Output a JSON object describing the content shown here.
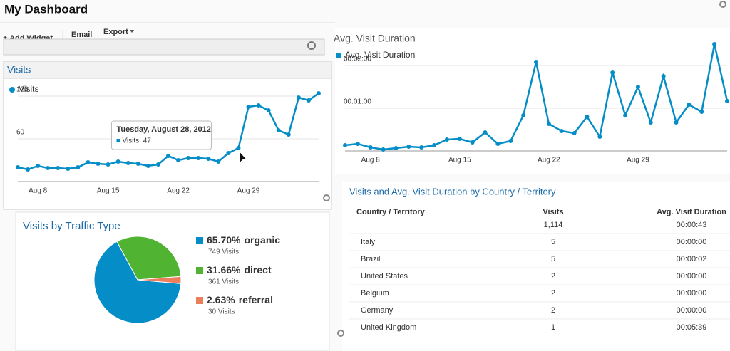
{
  "header": {
    "title": "My Dashboard"
  },
  "toolbar": {
    "add_widget": "+ Add Widget",
    "email": "Email",
    "export": "Export"
  },
  "chart_data": [
    {
      "type": "line",
      "title": "Visits",
      "categories": [
        null,
        null,
        "Aug 8",
        null,
        null,
        null,
        null,
        null,
        null,
        "Aug 15",
        null,
        null,
        null,
        null,
        null,
        null,
        "Aug 22",
        null,
        null,
        null,
        null,
        null,
        null,
        "Aug 29",
        null,
        null,
        null,
        null,
        null,
        null,
        null
      ],
      "series": [
        {
          "name": "Visits",
          "color": "#058dc7",
          "values": [
            20,
            17,
            22,
            19,
            19,
            18,
            20,
            27,
            25,
            24,
            28,
            26,
            25,
            22,
            24,
            36,
            30,
            33,
            33,
            32,
            28,
            40,
            47,
            105,
            107,
            100,
            72,
            66,
            118,
            114,
            124
          ]
        }
      ],
      "ylim": [
        0,
        140
      ],
      "yticks": [
        60,
        120
      ],
      "grid": true,
      "tooltip": {
        "title": "Tuesday, August 28, 2012",
        "text": "Visits: 47",
        "index": 22
      }
    },
    {
      "type": "line",
      "title": "Avg. Visit Duration",
      "categories": [
        null,
        null,
        "Aug 8",
        null,
        null,
        null,
        null,
        null,
        null,
        "Aug 15",
        null,
        null,
        null,
        null,
        null,
        null,
        "Aug 22",
        null,
        null,
        null,
        null,
        null,
        null,
        "Aug 29",
        null,
        null,
        null,
        null,
        null,
        null,
        null
      ],
      "series": [
        {
          "name": "Avg. Visit Duration",
          "color": "#058dc7",
          "values": [
            8,
            10,
            5,
            2,
            4,
            6,
            5,
            8,
            16,
            17,
            12,
            26,
            10,
            14,
            50,
            125,
            38,
            28,
            25,
            48,
            20,
            110,
            50,
            90,
            40,
            105,
            40,
            65,
            55,
            150,
            70
          ]
        }
      ],
      "ylim": [
        0,
        160
      ],
      "yticks": [
        {
          "value": 60,
          "label": "00:01:00"
        },
        {
          "value": 120,
          "label": "00:02:00"
        }
      ],
      "grid": true
    },
    {
      "type": "pie",
      "title": "Visits by Traffic Type",
      "categories": [
        "organic",
        "direct",
        "referral"
      ],
      "values": [
        65.7,
        31.66,
        2.63
      ],
      "value_labels": [
        "65.70%",
        "31.66%",
        "2.63%"
      ],
      "counts": [
        "749 Visits",
        "361 Visits",
        "30 Visits"
      ],
      "colors": [
        "#058dc7",
        "#50b432",
        "#ed7e5c"
      ]
    }
  ],
  "table": {
    "title": "Visits and Avg. Visit Duration by Country / Territory",
    "columns": [
      "Country / Territory",
      "Visits",
      "Avg. Visit Duration"
    ],
    "totals": [
      "1,114",
      "00:00:43"
    ],
    "rows": [
      [
        "Italy",
        "5",
        "00:00:00"
      ],
      [
        "Brazil",
        "5",
        "00:00:02"
      ],
      [
        "United States",
        "2",
        "00:00:00"
      ],
      [
        "Belgium",
        "2",
        "00:00:00"
      ],
      [
        "Germany",
        "2",
        "00:00:00"
      ],
      [
        "United Kingdom",
        "1",
        "00:05:39"
      ]
    ]
  }
}
